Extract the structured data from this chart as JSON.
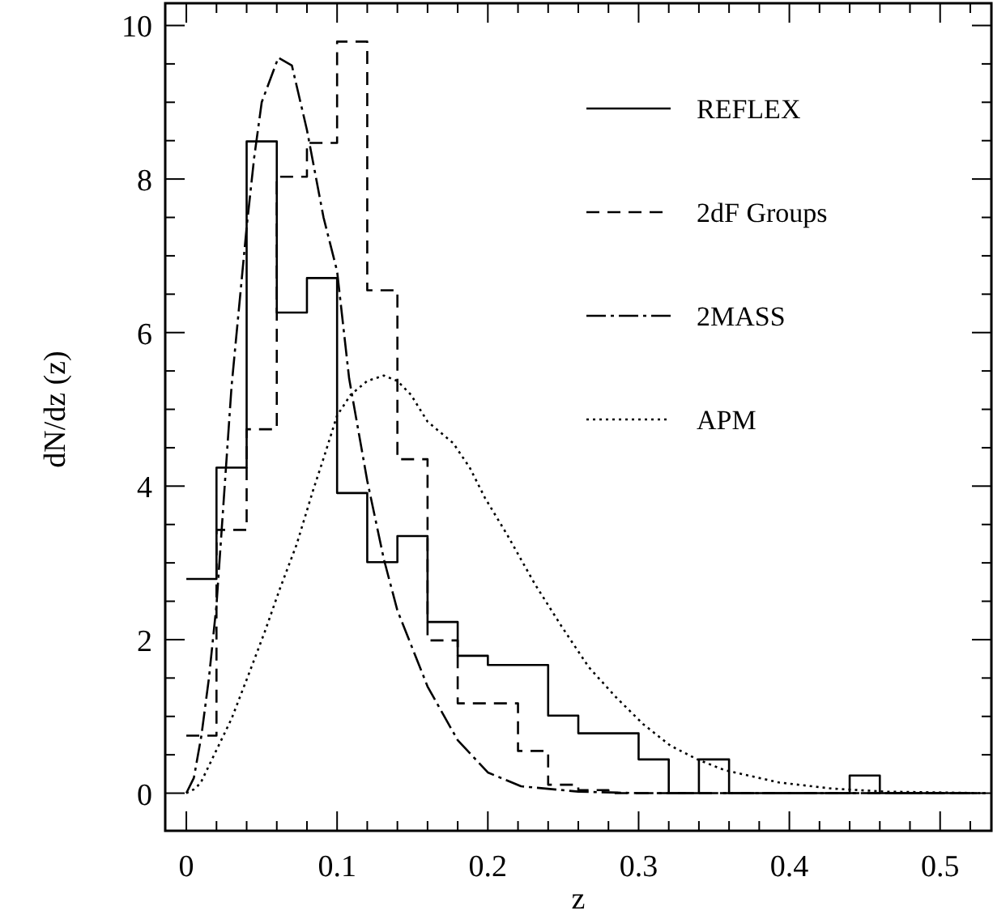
{
  "chart_data": {
    "type": "step",
    "xlabel": "z",
    "ylabel": "dN/dz (z)",
    "xlim": [
      -0.014,
      0.534
    ],
    "ylim": [
      -0.49,
      10.29
    ],
    "xticks": [
      0,
      {
        "value": 0.02,
        "label": null
      },
      {
        "value": 0.04,
        "label": null
      },
      {
        "value": 0.06,
        "label": null
      },
      {
        "value": 0.08,
        "label": null
      },
      0.1,
      {
        "value": 0.12,
        "label": null
      },
      {
        "value": 0.14,
        "label": null
      },
      {
        "value": 0.16,
        "label": null
      },
      {
        "value": 0.18,
        "label": null
      },
      0.2,
      {
        "value": 0.22,
        "label": null
      },
      {
        "value": 0.24,
        "label": null
      },
      {
        "value": 0.26,
        "label": null
      },
      {
        "value": 0.28,
        "label": null
      },
      0.3,
      {
        "value": 0.32,
        "label": null
      },
      {
        "value": 0.34,
        "label": null
      },
      {
        "value": 0.36,
        "label": null
      },
      {
        "value": 0.38,
        "label": null
      },
      0.4,
      {
        "value": 0.42,
        "label": null
      },
      {
        "value": 0.44,
        "label": null
      },
      {
        "value": 0.46,
        "label": null
      },
      {
        "value": 0.48,
        "label": null
      },
      0.5,
      {
        "value": 0.52,
        "label": null
      }
    ],
    "yticks": [
      0,
      {
        "value": 0.5,
        "label": null
      },
      {
        "value": 1,
        "label": null
      },
      {
        "value": 1.5,
        "label": null
      },
      2,
      {
        "value": 2.5,
        "label": null
      },
      {
        "value": 3,
        "label": null
      },
      {
        "value": 3.5,
        "label": null
      },
      4,
      {
        "value": 4.5,
        "label": null
      },
      {
        "value": 5,
        "label": null
      },
      {
        "value": 5.5,
        "label": null
      },
      6,
      {
        "value": 6.5,
        "label": null
      },
      {
        "value": 7,
        "label": null
      },
      {
        "value": 7.5,
        "label": null
      },
      8,
      {
        "value": 8.5,
        "label": null
      },
      {
        "value": 9,
        "label": null
      },
      {
        "value": 9.5,
        "label": null
      },
      10
    ],
    "legend": "top right",
    "series": [
      {
        "name": "REFLEX",
        "type": "step",
        "color": "#000000",
        "line_style": "solid",
        "x": [
          0,
          0.02,
          0.04,
          0.06,
          0.08,
          0.1,
          0.12,
          0.14,
          0.16,
          0.18,
          0.2,
          0.22,
          0.24,
          0.26,
          0.28,
          0.3,
          0.32,
          0.34,
          0.36,
          0.38,
          0.4,
          0.42,
          0.44,
          0.46,
          0.48,
          0.5,
          0.52
        ],
        "values": [
          2.79,
          4.24,
          8.49,
          6.26,
          6.71,
          3.91,
          3.01,
          3.35,
          2.23,
          1.79,
          1.67,
          1.67,
          1.01,
          0.78,
          0.78,
          0.44,
          0,
          0.44,
          0,
          0,
          0,
          0,
          0.23,
          0,
          0,
          0,
          0
        ]
      },
      {
        "name": "2dF Groups",
        "type": "step",
        "color": "#000000",
        "line_style": "dashed",
        "x": [
          0,
          0.02,
          0.04,
          0.06,
          0.08,
          0.1,
          0.12,
          0.14,
          0.16,
          0.18,
          0.2,
          0.22,
          0.24,
          0.26,
          0.28,
          0.3,
          0.32,
          0.34,
          0.36,
          0.38,
          0.4,
          0.42,
          0.44,
          0.46,
          0.48,
          0.5,
          0.52
        ],
        "values": [
          0.75,
          3.43,
          4.74,
          8.03,
          8.47,
          9.79,
          6.55,
          4.35,
          1.99,
          1.17,
          1.17,
          0.55,
          0.11,
          0.04,
          0,
          0,
          0,
          0,
          0,
          0,
          0,
          0,
          0,
          0,
          0,
          0,
          0
        ]
      },
      {
        "name": "2MASS",
        "type": "line",
        "color": "#000000",
        "line_style": "dashdot",
        "x": [
          0,
          0.005,
          0.01,
          0.015,
          0.02,
          0.03,
          0.04,
          0.045,
          0.05,
          0.061,
          0.07,
          0.08,
          0.091,
          0.1,
          0.108,
          0.12,
          0.131,
          0.14,
          0.16,
          0.18,
          0.2,
          0.222,
          0.26,
          0.3,
          0.4,
          0.53
        ],
        "values": [
          0,
          0.2,
          0.75,
          1.5,
          2.45,
          5.3,
          7.37,
          8.28,
          9.0,
          9.58,
          9.48,
          8.64,
          7.5,
          6.8,
          5.4,
          4.07,
          3.05,
          2.38,
          1.39,
          0.69,
          0.27,
          0.09,
          0.02,
          0,
          0,
          0
        ]
      },
      {
        "name": "APM",
        "type": "line",
        "color": "#000000",
        "line_style": "dotted",
        "x": [
          0,
          0.005,
          0.0094,
          0.0197,
          0.03,
          0.041,
          0.052,
          0.062,
          0.073,
          0.084,
          0.091,
          0.1,
          0.109,
          0.12,
          0.131,
          0.14,
          0.149,
          0.16,
          0.177,
          0.188,
          0.198,
          0.213,
          0.231,
          0.249,
          0.267,
          0.285,
          0.303,
          0.321,
          0.339,
          0.357,
          0.393,
          0.428,
          0.464,
          0.53
        ],
        "values": [
          0,
          0.05,
          0.13,
          0.55,
          0.97,
          1.53,
          2.1,
          2.66,
          3.23,
          3.94,
          4.36,
          4.92,
          5.19,
          5.37,
          5.44,
          5.37,
          5.19,
          4.84,
          4.56,
          4.24,
          3.85,
          3.36,
          2.73,
          2.17,
          1.64,
          1.25,
          0.9,
          0.62,
          0.44,
          0.3,
          0.14,
          0.06,
          0.02,
          0
        ]
      }
    ]
  }
}
